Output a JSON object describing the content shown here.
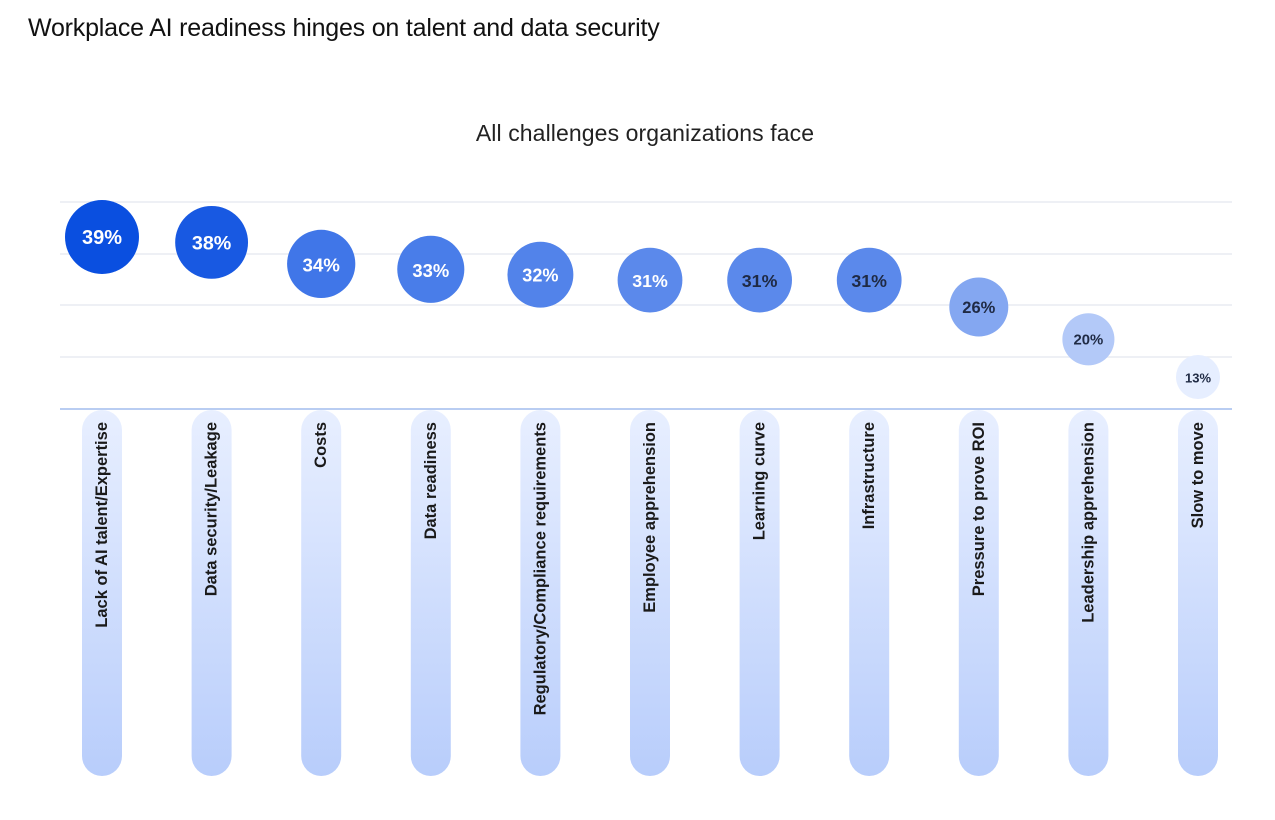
{
  "page": {
    "heading": "Workplace AI readiness hinges on talent and data security"
  },
  "chart_data": {
    "type": "scatter",
    "title": "All challenges organizations face",
    "value_suffix": "%",
    "categories": [
      "Lack of AI talent/Expertise",
      "Data security/Leakage",
      "Costs",
      "Data readiness",
      "Regulatory/Compliance requirements",
      "Employee apprehension",
      "Learning curve",
      "Infrastructure",
      "Pressure to prove ROI",
      "Leadership apprehension",
      "Slow to move"
    ],
    "values": [
      39,
      38,
      34,
      33,
      32,
      31,
      31,
      31,
      26,
      20,
      13
    ],
    "grid": true,
    "colors": {
      "darkest": "#0a4fe0",
      "lightest": "#e6eeff",
      "dark_text": "#ffffff",
      "light_text": "#1f2a44",
      "gridline": "#e9ecf2",
      "baseline": "#b9cdf2",
      "column_top": "#e8efff",
      "column_bottom": "#b8cdfb"
    }
  }
}
